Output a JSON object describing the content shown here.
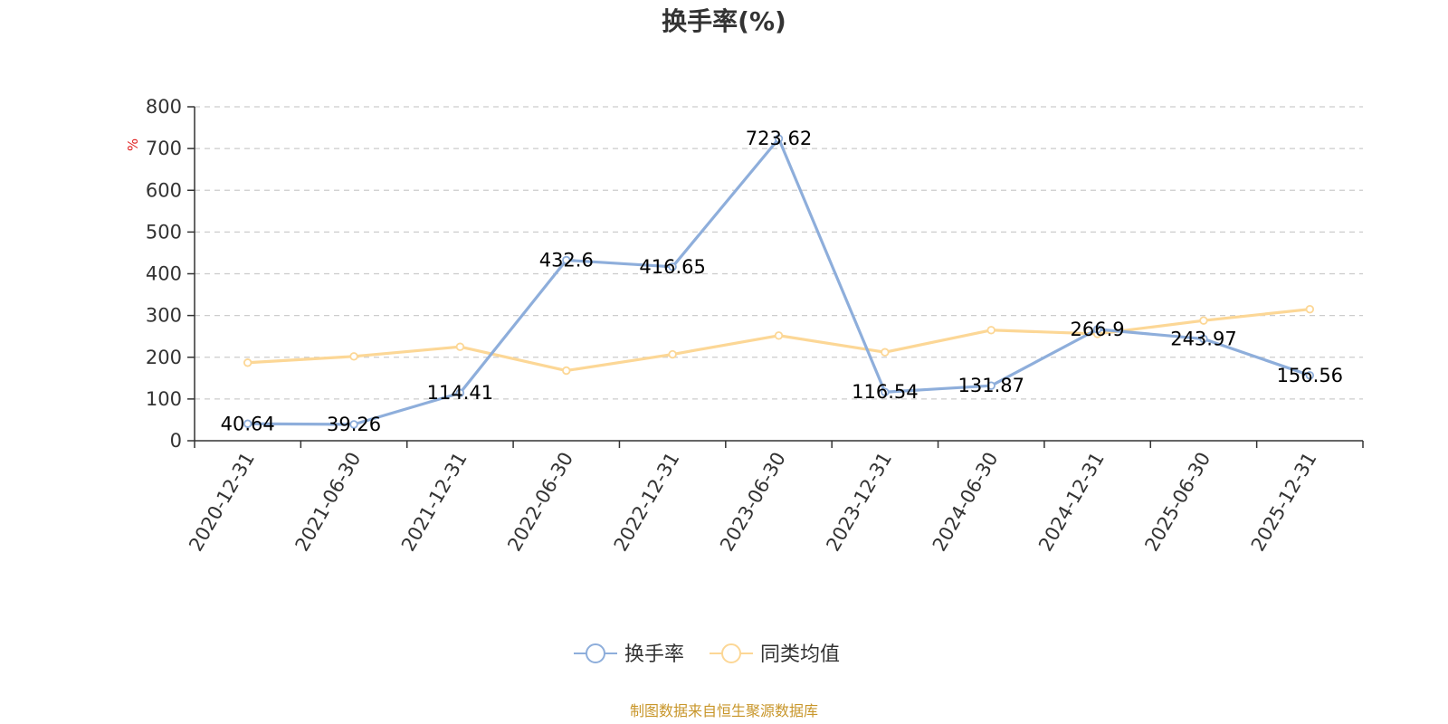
{
  "chart_data": {
    "type": "line",
    "title": "换手率(%)",
    "ylabel": "%",
    "ylim": [
      0,
      800
    ],
    "yticks": [
      0,
      100,
      200,
      300,
      400,
      500,
      600,
      700,
      800
    ],
    "grid": true,
    "categories": [
      "2020-12-31",
      "2021-06-30",
      "2021-12-31",
      "2022-06-30",
      "2022-12-31",
      "2023-06-30",
      "2023-12-31",
      "2024-06-30",
      "2024-12-31",
      "2025-06-30",
      "2025-12-31"
    ],
    "series": [
      {
        "name": "换手率",
        "color": "#8eaedb",
        "values": [
          40.64,
          39.26,
          114.41,
          432.6,
          416.65,
          723.62,
          116.54,
          131.87,
          266.9,
          243.97,
          156.56
        ],
        "labels": [
          "40.64",
          "39.26",
          "114.41",
          "432.6",
          "416.65",
          "723.62",
          "116.54",
          "131.87",
          "266.9",
          "243.97",
          "156.56"
        ]
      },
      {
        "name": "同类均值",
        "color": "#fcd796",
        "values": [
          187,
          202,
          225,
          168,
          207,
          252,
          212,
          265,
          256,
          288,
          315
        ]
      }
    ],
    "legend_position": "bottom-center",
    "source": "制图数据来自恒生聚源数据库"
  }
}
